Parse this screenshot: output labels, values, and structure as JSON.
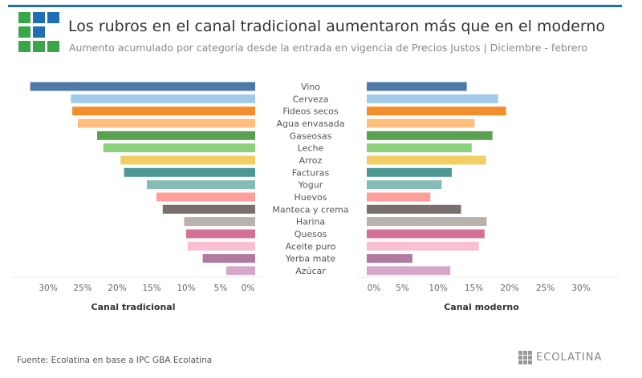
{
  "header": {
    "title": "Los rubros en el canal tradicional aumentaron más que en el moderno",
    "subtitle": "Aumento acumulado por categoría desde la entrada en vigencia de Precios Justos | Diciembre - febrero"
  },
  "footer": {
    "source": "Fuente: Ecolatina en base a IPC GBA Ecolatina",
    "brand": "ECOLATINA"
  },
  "colors": {
    "accent": "#1f6fb5",
    "logo_green": "#3aa64a",
    "logo_blue": "#1f6fb5"
  },
  "chart_data": [
    {
      "type": "bar",
      "orientation": "horizontal",
      "direction": "leftward",
      "xlabel": "Canal tradicional",
      "xlim": [
        0,
        33
      ],
      "ticks": [
        "0%",
        "5%",
        "10%",
        "15%",
        "20%",
        "25%",
        "30%"
      ],
      "tick_values": [
        0,
        5,
        10,
        15,
        20,
        25,
        30
      ],
      "categories": [
        "Vino",
        "Cerveza",
        "Fideos secos",
        "Agua envasada",
        "Gaseosas",
        "Leche",
        "Arroz",
        "Facturas",
        "Yogur",
        "Huevos",
        "Manteca y crema",
        "Harina",
        "Quesos",
        "Aceite puro",
        "Yerba mate",
        "Azúcar"
      ],
      "values": [
        32.6,
        26.7,
        26.5,
        25.7,
        22.9,
        22.0,
        19.5,
        19.0,
        15.7,
        14.3,
        13.4,
        10.3,
        10.0,
        9.8,
        7.6,
        4.2
      ]
    },
    {
      "type": "bar",
      "orientation": "horizontal",
      "xlabel": "Canal moderno",
      "xlim": [
        0,
        33
      ],
      "ticks": [
        "0%",
        "5%",
        "10%",
        "15%",
        "20%",
        "25%",
        "30%"
      ],
      "tick_values": [
        0,
        5,
        10,
        15,
        20,
        25,
        30
      ],
      "categories": [
        "Vino",
        "Cerveza",
        "Fideos secos",
        "Agua envasada",
        "Gaseosas",
        "Leche",
        "Arroz",
        "Facturas",
        "Yogur",
        "Huevos",
        "Manteca y crema",
        "Harina",
        "Quesos",
        "Aceite puro",
        "Yerba mate",
        "Azúcar"
      ],
      "values": [
        14.0,
        18.4,
        19.5,
        15.1,
        17.6,
        14.7,
        16.7,
        11.9,
        10.5,
        8.9,
        13.2,
        16.8,
        16.5,
        15.7,
        6.4,
        11.7
      ]
    }
  ],
  "bar_colors": [
    "#4e79a7",
    "#a0cbe8",
    "#f28e2b",
    "#ffbe7d",
    "#59a14f",
    "#8cd17d",
    "#f1ce63",
    "#499894",
    "#86bcb6",
    "#ff9d9a",
    "#79706e",
    "#bab0ac",
    "#d37295",
    "#fabfd2",
    "#b07aa1",
    "#d4a6c8"
  ]
}
